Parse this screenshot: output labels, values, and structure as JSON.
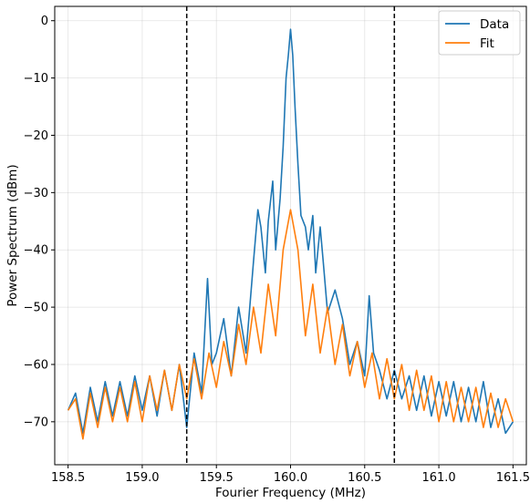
{
  "chart_data": {
    "type": "line",
    "xlabel": "Fourier Frequency (MHz)",
    "ylabel": "Power Spectrum (dBm)",
    "xlim": [
      158.41,
      161.59
    ],
    "ylim": [
      -77.5,
      2.5
    ],
    "xticks": [
      158.5,
      159.0,
      159.5,
      160.0,
      160.5,
      161.0,
      161.5
    ],
    "xtick_labels": [
      "158.5",
      "159.0",
      "159.5",
      "160.0",
      "160.5",
      "161.0",
      "161.5"
    ],
    "yticks": [
      0,
      -10,
      -20,
      -30,
      -40,
      -50,
      -60,
      -70
    ],
    "ytick_labels": [
      "0",
      "−10",
      "−20",
      "−30",
      "−40",
      "−50",
      "−60",
      "−70"
    ],
    "grid": true,
    "legend_position": "top-right",
    "vlines": [
      159.3,
      160.7
    ],
    "series": [
      {
        "name": "Data",
        "color": "#1f77b4",
        "x": [
          158.5,
          158.55,
          158.6,
          158.65,
          158.7,
          158.75,
          158.8,
          158.85,
          158.9,
          158.95,
          159.0,
          159.05,
          159.1,
          159.15,
          159.2,
          159.25,
          159.3,
          159.35,
          159.4,
          159.44,
          159.47,
          159.5,
          159.55,
          159.6,
          159.65,
          159.7,
          159.75,
          159.78,
          159.8,
          159.83,
          159.85,
          159.88,
          159.9,
          159.93,
          159.95,
          159.97,
          159.985,
          160.0,
          160.015,
          160.03,
          160.05,
          160.07,
          160.1,
          160.12,
          160.15,
          160.17,
          160.2,
          160.22,
          160.25,
          160.3,
          160.35,
          160.4,
          160.45,
          160.5,
          160.53,
          160.56,
          160.6,
          160.65,
          160.7,
          160.75,
          160.8,
          160.85,
          160.9,
          160.95,
          161.0,
          161.05,
          161.1,
          161.15,
          161.2,
          161.25,
          161.3,
          161.35,
          161.4,
          161.45,
          161.5
        ],
        "y": [
          -68,
          -65,
          -72,
          -64,
          -70,
          -63,
          -69,
          -63,
          -69,
          -62,
          -68,
          -62,
          -69,
          -61,
          -68,
          -60,
          -71,
          -58,
          -65,
          -45,
          -60,
          -58,
          -52,
          -62,
          -50,
          -58,
          -42,
          -33,
          -36,
          -44,
          -35,
          -28,
          -40,
          -31,
          -22,
          -10,
          -6,
          -1.5,
          -6,
          -15,
          -25,
          -34,
          -36,
          -40,
          -34,
          -44,
          -36,
          -42,
          -51,
          -47,
          -52,
          -60,
          -56,
          -62,
          -48,
          -58,
          -61,
          -66,
          -61,
          -66,
          -62,
          -68,
          -62,
          -69,
          -63,
          -69,
          -63,
          -70,
          -64,
          -70,
          -63,
          -71,
          -66,
          -72,
          -70
        ]
      },
      {
        "name": "Fit",
        "color": "#ff7f0e",
        "x": [
          158.5,
          158.55,
          158.6,
          158.65,
          158.7,
          158.75,
          158.8,
          158.85,
          158.9,
          158.95,
          159.0,
          159.05,
          159.1,
          159.15,
          159.2,
          159.25,
          159.3,
          159.35,
          159.4,
          159.45,
          159.5,
          159.55,
          159.6,
          159.65,
          159.7,
          159.75,
          159.8,
          159.85,
          159.9,
          159.95,
          160.0,
          160.05,
          160.1,
          160.15,
          160.2,
          160.25,
          160.3,
          160.35,
          160.4,
          160.45,
          160.5,
          160.55,
          160.6,
          160.65,
          160.7,
          160.75,
          160.8,
          160.85,
          160.9,
          160.95,
          161.0,
          161.05,
          161.1,
          161.15,
          161.2,
          161.25,
          161.3,
          161.35,
          161.4,
          161.45,
          161.5
        ],
        "y": [
          -68,
          -66,
          -73,
          -65,
          -71,
          -64,
          -70,
          -64,
          -70,
          -63,
          -70,
          -62,
          -68,
          -61,
          -68,
          -60,
          -66,
          -59,
          -66,
          -58,
          -64,
          -56,
          -62,
          -53,
          -60,
          -50,
          -58,
          -46,
          -55,
          -40,
          -33,
          -40,
          -55,
          -46,
          -58,
          -50,
          -60,
          -53,
          -62,
          -56,
          -64,
          -58,
          -66,
          -59,
          -66,
          -60,
          -68,
          -61,
          -68,
          -62,
          -70,
          -63,
          -70,
          -64,
          -70,
          -64,
          -71,
          -65,
          -71,
          -66,
          -70
        ]
      }
    ]
  }
}
